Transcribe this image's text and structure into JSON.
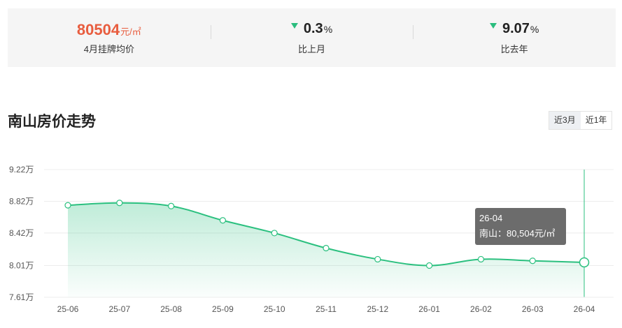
{
  "stats": {
    "avg_price": {
      "value": "80504",
      "unit": "元/㎡",
      "label": "4月挂牌均价"
    },
    "mom": {
      "value": "0.3",
      "unit": "%",
      "label": "比上月",
      "direction": "down"
    },
    "yoy": {
      "value": "9.07",
      "unit": "%",
      "label": "比去年",
      "direction": "down"
    }
  },
  "section_title": "南山房价走势",
  "range_tabs": [
    {
      "label": "近3月",
      "active": true
    },
    {
      "label": "近1年",
      "active": false
    }
  ],
  "colors": {
    "line": "#2bc07f",
    "accent_price": "#e85d3f",
    "arrow_down": "#2bbd7e"
  },
  "tooltip": {
    "title": "26-04",
    "series_label": "南山",
    "value_text": "80,504元/㎡"
  },
  "chart_data": {
    "type": "area",
    "x": [
      "25-06",
      "25-07",
      "25-08",
      "25-09",
      "25-10",
      "25-11",
      "25-12",
      "26-01",
      "26-02",
      "26-03",
      "26-04"
    ],
    "series": [
      {
        "name": "南山",
        "values": [
          87700,
          88000,
          87600,
          85800,
          84200,
          82300,
          80900,
          80100,
          80900,
          80700,
          80504
        ]
      }
    ],
    "y_ticks": [
      76100,
      80100,
      84200,
      88200,
      92200
    ],
    "y_tick_labels": [
      "7.61万",
      "8.01万",
      "8.42万",
      "8.82万",
      "9.22万"
    ],
    "ylim": [
      76100,
      92200
    ],
    "highlight_index": 10,
    "grid": true
  }
}
